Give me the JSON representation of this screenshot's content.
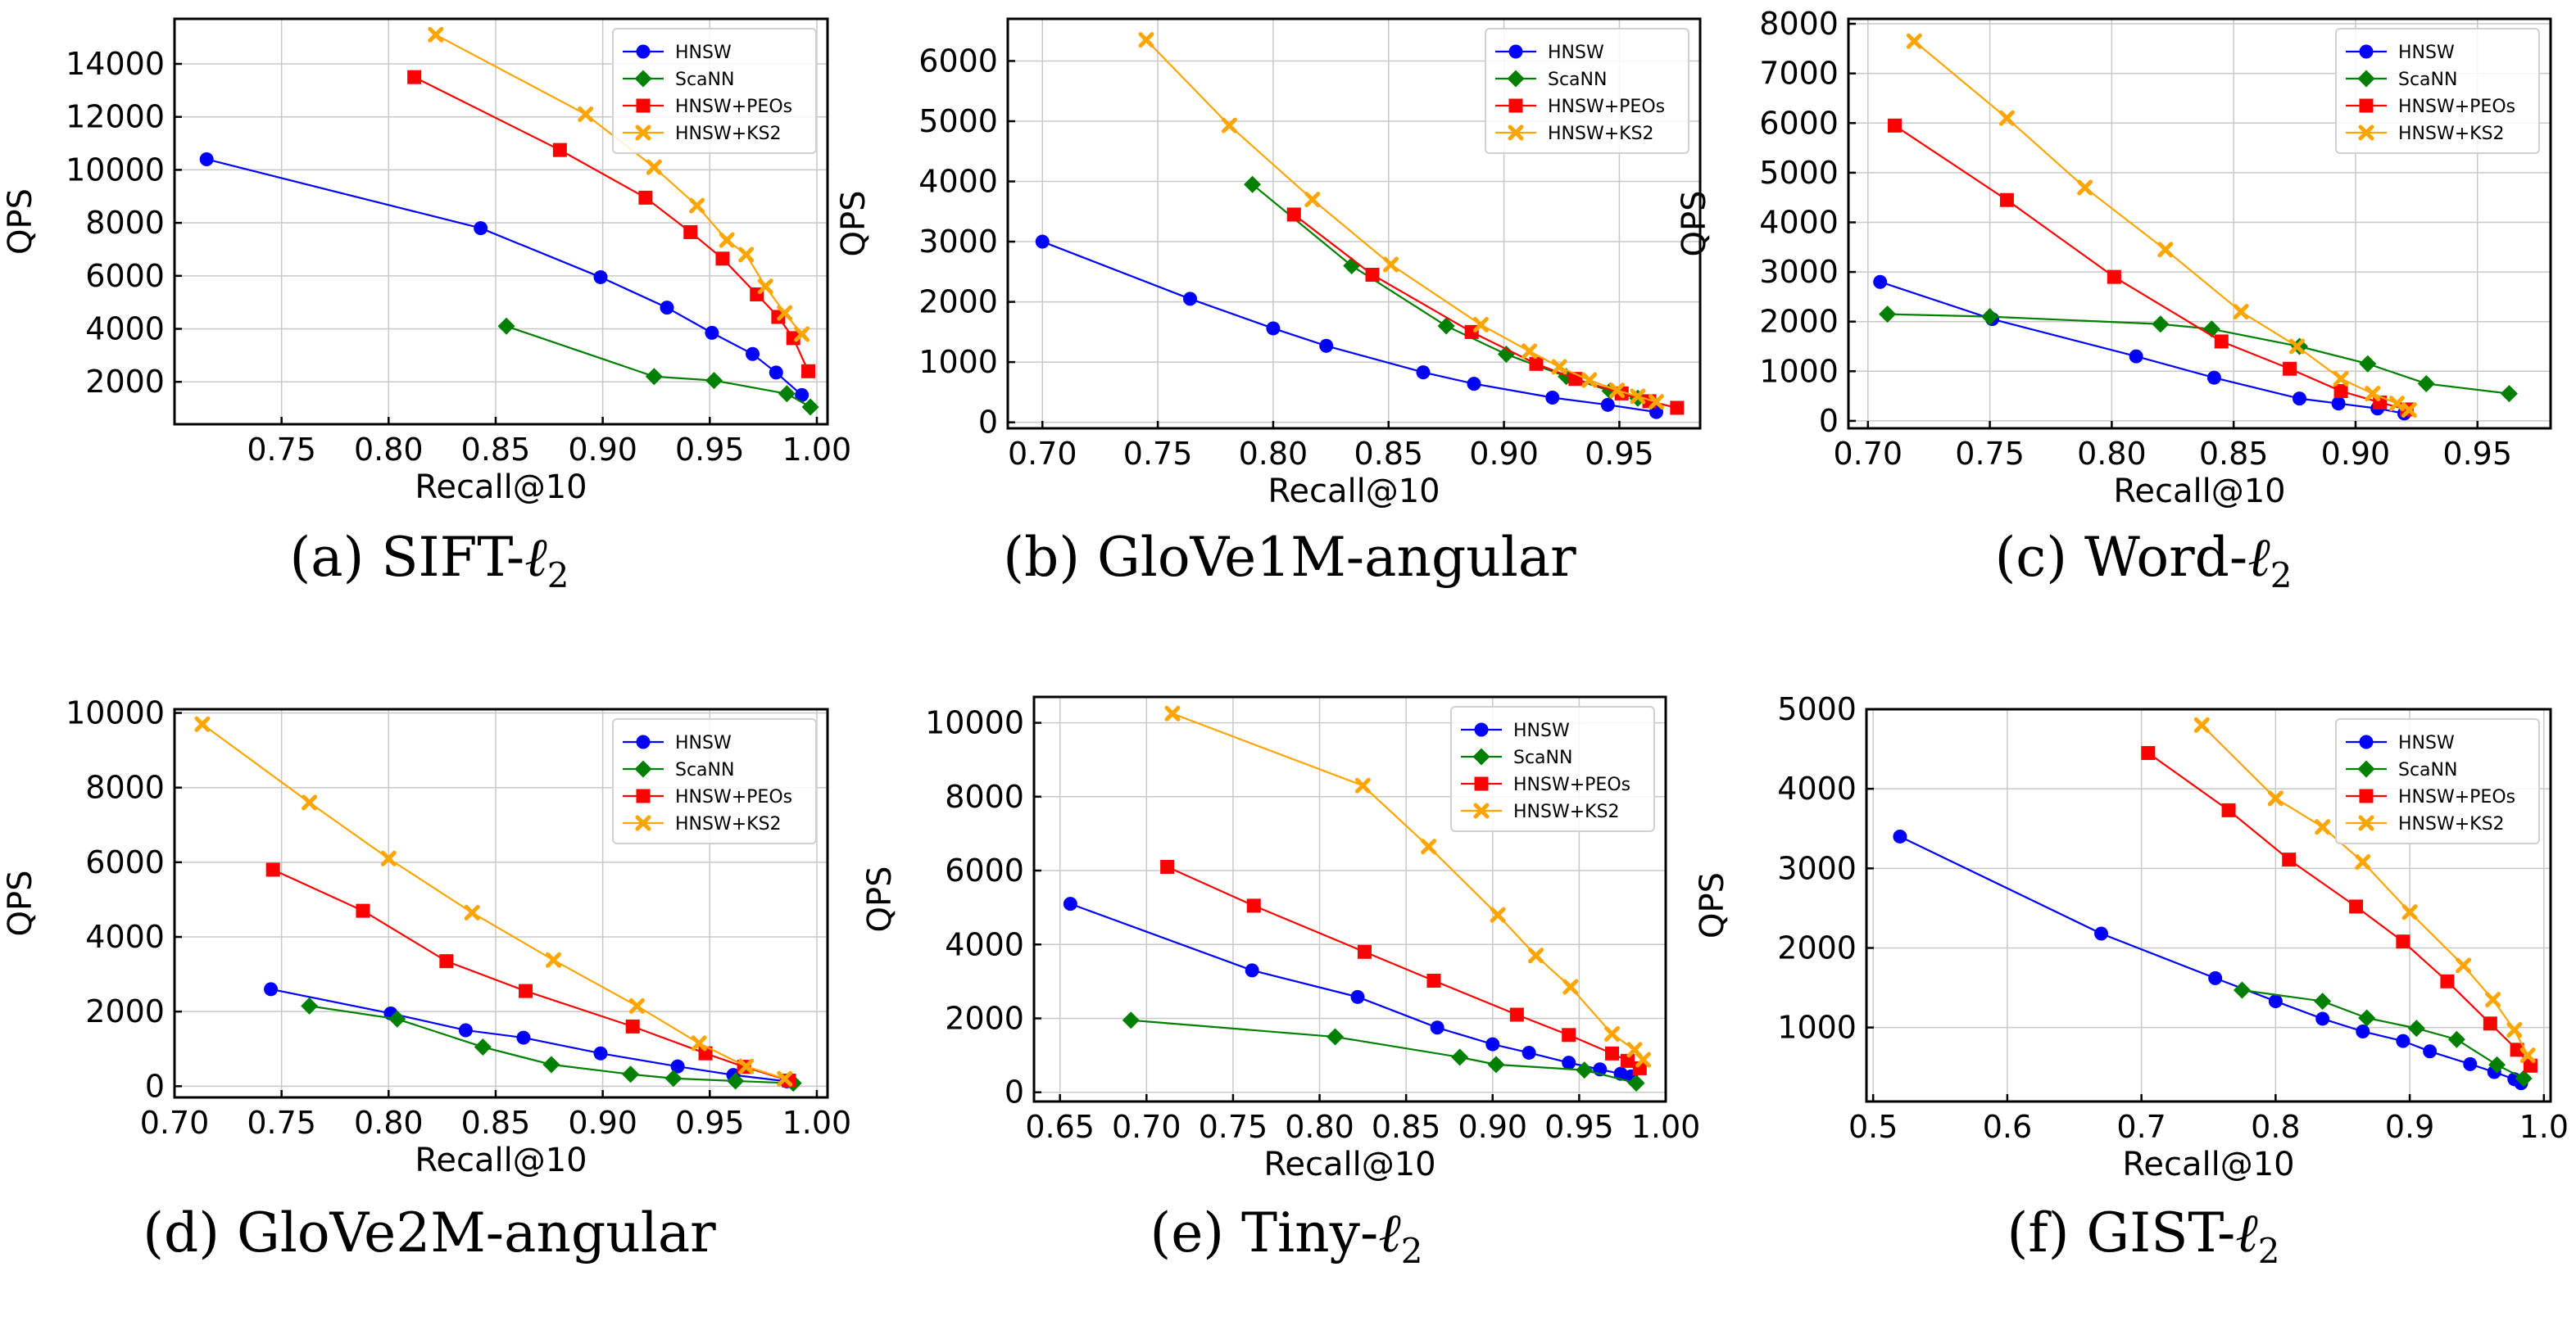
{
  "colors": {
    "HNSW": "#0000ff",
    "ScaNN": "#008000",
    "HNSW+PEOs": "#ff0000",
    "HNSW+KS2": "#ffa500"
  },
  "markers": {
    "HNSW": "circle",
    "ScaNN": "diamond",
    "HNSW+PEOs": "square",
    "HNSW+KS2": "x"
  },
  "chart_data": [
    {
      "type": "line",
      "caption_prefix": "(a) SIFT-",
      "caption_ell": "ℓ",
      "caption_sub": "2",
      "xlabel": "Recall@10",
      "ylabel": "QPS",
      "xlim": [
        0.7,
        1.005
      ],
      "ylim": [
        400,
        15700
      ],
      "xticks": [
        0.75,
        0.8,
        0.85,
        0.9,
        0.95,
        1.0
      ],
      "xtick_labels": [
        "0.75",
        "0.80",
        "0.85",
        "0.90",
        "0.95",
        "1.00"
      ],
      "yticks": [
        2000,
        4000,
        6000,
        8000,
        10000,
        12000,
        14000
      ],
      "ytick_labels": [
        "2000",
        "4000",
        "6000",
        "8000",
        "10000",
        "12000",
        "14000"
      ],
      "grid": true,
      "legend": "top-right",
      "series": [
        {
          "name": "HNSW",
          "x": [
            0.715,
            0.843,
            0.899,
            0.93,
            0.951,
            0.97,
            0.981,
            0.993
          ],
          "y": [
            10400,
            7800,
            5950,
            4800,
            3850,
            3050,
            2350,
            1500
          ]
        },
        {
          "name": "ScaNN",
          "x": [
            0.855,
            0.924,
            0.952,
            0.986,
            0.997
          ],
          "y": [
            4100,
            2200,
            2050,
            1550,
            1050
          ]
        },
        {
          "name": "HNSW+PEOs",
          "x": [
            0.812,
            0.88,
            0.92,
            0.941,
            0.956,
            0.972,
            0.982,
            0.989,
            0.996
          ],
          "y": [
            13500,
            10750,
            8950,
            7650,
            6650,
            5300,
            4450,
            3650,
            2400
          ]
        },
        {
          "name": "HNSW+KS2",
          "x": [
            0.822,
            0.892,
            0.924,
            0.944,
            0.958,
            0.967,
            0.976,
            0.985,
            0.993
          ],
          "y": [
            15100,
            12100,
            10100,
            8650,
            7350,
            6800,
            5600,
            4600,
            3800
          ]
        }
      ]
    },
    {
      "type": "line",
      "caption_prefix": "(b) GloVe1M-angular",
      "caption_ell": "",
      "caption_sub": "",
      "xlabel": "Recall@10",
      "ylabel": "QPS",
      "xlim": [
        0.685,
        0.985
      ],
      "ylim": [
        -100,
        6700
      ],
      "xticks": [
        0.7,
        0.75,
        0.8,
        0.85,
        0.9,
        0.95
      ],
      "xtick_labels": [
        "0.70",
        "0.75",
        "0.80",
        "0.85",
        "0.90",
        "0.95"
      ],
      "yticks": [
        0,
        1000,
        2000,
        3000,
        4000,
        5000,
        6000
      ],
      "ytick_labels": [
        "0",
        "1000",
        "2000",
        "3000",
        "4000",
        "5000",
        "6000"
      ],
      "grid": true,
      "legend": "top-right",
      "series": [
        {
          "name": "HNSW",
          "x": [
            0.7,
            0.764,
            0.8,
            0.823,
            0.865,
            0.887,
            0.921,
            0.945,
            0.966
          ],
          "y": [
            3000,
            2050,
            1560,
            1270,
            830,
            640,
            410,
            290,
            170
          ]
        },
        {
          "name": "ScaNN",
          "x": [
            0.791,
            0.834,
            0.875,
            0.901,
            0.927,
            0.946,
            0.958
          ],
          "y": [
            3950,
            2600,
            1600,
            1130,
            760,
            520,
            400
          ]
        },
        {
          "name": "HNSW+PEOs",
          "x": [
            0.809,
            0.843,
            0.886,
            0.914,
            0.931,
            0.951,
            0.963,
            0.975
          ],
          "y": [
            3450,
            2450,
            1500,
            970,
            720,
            480,
            350,
            240
          ]
        },
        {
          "name": "HNSW+KS2",
          "x": [
            0.745,
            0.781,
            0.817,
            0.851,
            0.89,
            0.911,
            0.924,
            0.937,
            0.949,
            0.958,
            0.966
          ],
          "y": [
            6350,
            4930,
            3700,
            2620,
            1620,
            1180,
            920,
            700,
            530,
            430,
            340
          ]
        }
      ]
    },
    {
      "type": "line",
      "caption_prefix": "(c) Word-",
      "caption_ell": "ℓ",
      "caption_sub": "2",
      "xlabel": "Recall@10",
      "ylabel": "QPS",
      "xlim": [
        0.692,
        0.98
      ],
      "ylim": [
        -150,
        8100
      ],
      "xticks": [
        0.7,
        0.75,
        0.8,
        0.85,
        0.9,
        0.95
      ],
      "xtick_labels": [
        "0.70",
        "0.75",
        "0.80",
        "0.85",
        "0.90",
        "0.95"
      ],
      "yticks": [
        0,
        1000,
        2000,
        3000,
        4000,
        5000,
        6000,
        7000,
        8000
      ],
      "ytick_labels": [
        "0",
        "1000",
        "2000",
        "3000",
        "4000",
        "5000",
        "6000",
        "7000",
        "8000"
      ],
      "grid": true,
      "legend": "top-right",
      "series": [
        {
          "name": "HNSW",
          "x": [
            0.705,
            0.751,
            0.81,
            0.842,
            0.877,
            0.893,
            0.909,
            0.92
          ],
          "y": [
            2800,
            2050,
            1300,
            870,
            450,
            350,
            250,
            150
          ]
        },
        {
          "name": "ScaNN",
          "x": [
            0.708,
            0.75,
            0.82,
            0.841,
            0.877,
            0.905,
            0.929,
            0.963
          ],
          "y": [
            2150,
            2100,
            1950,
            1850,
            1500,
            1150,
            750,
            550
          ]
        },
        {
          "name": "HNSW+PEOs",
          "x": [
            0.711,
            0.757,
            0.801,
            0.845,
            0.873,
            0.894,
            0.91,
            0.921
          ],
          "y": [
            5950,
            4450,
            2900,
            1600,
            1050,
            600,
            370,
            230
          ]
        },
        {
          "name": "HNSW+KS2",
          "x": [
            0.719,
            0.757,
            0.789,
            0.822,
            0.853,
            0.876,
            0.894,
            0.907,
            0.917,
            0.922
          ],
          "y": [
            7650,
            6100,
            4700,
            3450,
            2200,
            1500,
            850,
            550,
            350,
            220
          ]
        }
      ]
    },
    {
      "type": "line",
      "caption_prefix": "(d) GloVe2M-angular",
      "caption_ell": "",
      "caption_sub": "",
      "xlabel": "Recall@10",
      "ylabel": "QPS",
      "xlim": [
        0.7,
        1.005
      ],
      "ylim": [
        -300,
        10100
      ],
      "xticks": [
        0.7,
        0.75,
        0.8,
        0.85,
        0.9,
        0.95,
        1.0
      ],
      "xtick_labels": [
        "0.70",
        "0.75",
        "0.80",
        "0.85",
        "0.90",
        "0.95",
        "1.00"
      ],
      "yticks": [
        0,
        2000,
        4000,
        6000,
        8000,
        10000
      ],
      "ytick_labels": [
        "0",
        "2000",
        "4000",
        "6000",
        "8000",
        "10000"
      ],
      "grid": true,
      "legend": "top-right",
      "series": [
        {
          "name": "HNSW",
          "x": [
            0.745,
            0.801,
            0.836,
            0.863,
            0.899,
            0.935,
            0.961,
            0.986
          ],
          "y": [
            2600,
            1950,
            1500,
            1300,
            880,
            530,
            300,
            130
          ]
        },
        {
          "name": "ScaNN",
          "x": [
            0.763,
            0.804,
            0.844,
            0.876,
            0.913,
            0.933,
            0.962,
            0.989
          ],
          "y": [
            2150,
            1800,
            1050,
            580,
            320,
            210,
            140,
            80
          ]
        },
        {
          "name": "HNSW+PEOs",
          "x": [
            0.746,
            0.788,
            0.827,
            0.864,
            0.914,
            0.948,
            0.966,
            0.987
          ],
          "y": [
            5800,
            4700,
            3350,
            2550,
            1600,
            880,
            520,
            150
          ]
        },
        {
          "name": "HNSW+KS2",
          "x": [
            0.713,
            0.763,
            0.8,
            0.839,
            0.877,
            0.916,
            0.945,
            0.967,
            0.985
          ],
          "y": [
            9700,
            7600,
            6100,
            4650,
            3380,
            2150,
            1150,
            530,
            200
          ]
        }
      ]
    },
    {
      "type": "line",
      "caption_prefix": "(e) Tiny-",
      "caption_ell": "ℓ",
      "caption_sub": "2",
      "xlabel": "Recall@10",
      "ylabel": "QPS",
      "xlim": [
        0.635,
        1.0
      ],
      "ylim": [
        -250,
        10700
      ],
      "xticks": [
        0.65,
        0.7,
        0.75,
        0.8,
        0.85,
        0.9,
        0.95,
        1.0
      ],
      "xtick_labels": [
        "0.65",
        "0.70",
        "0.75",
        "0.80",
        "0.85",
        "0.90",
        "0.95",
        "1.00"
      ],
      "yticks": [
        0,
        2000,
        4000,
        6000,
        8000,
        10000
      ],
      "ytick_labels": [
        "0",
        "2000",
        "4000",
        "6000",
        "8000",
        "10000"
      ],
      "grid": true,
      "legend": "top-right",
      "series": [
        {
          "name": "HNSW",
          "x": [
            0.656,
            0.761,
            0.822,
            0.868,
            0.9,
            0.921,
            0.944,
            0.962,
            0.974,
            0.98
          ],
          "y": [
            5100,
            3300,
            2580,
            1750,
            1300,
            1070,
            800,
            620,
            500,
            430
          ]
        },
        {
          "name": "ScaNN",
          "x": [
            0.691,
            0.809,
            0.881,
            0.902,
            0.953,
            0.983
          ],
          "y": [
            1950,
            1500,
            950,
            750,
            600,
            250
          ]
        },
        {
          "name": "HNSW+PEOs",
          "x": [
            0.712,
            0.762,
            0.826,
            0.866,
            0.914,
            0.944,
            0.969,
            0.978,
            0.985
          ],
          "y": [
            6100,
            5050,
            3800,
            3020,
            2100,
            1550,
            1050,
            850,
            650
          ]
        },
        {
          "name": "HNSW+KS2",
          "x": [
            0.715,
            0.825,
            0.863,
            0.903,
            0.925,
            0.945,
            0.969,
            0.982,
            0.987
          ],
          "y": [
            10250,
            8300,
            6650,
            4800,
            3700,
            2850,
            1580,
            1150,
            880
          ]
        }
      ]
    },
    {
      "type": "line",
      "caption_prefix": "(f) GIST-",
      "caption_ell": "ℓ",
      "caption_sub": "2",
      "xlabel": "Recall@10",
      "ylabel": "QPS",
      "xlim": [
        0.495,
        1.005
      ],
      "ylim": [
        70,
        5000
      ],
      "xticks": [
        0.5,
        0.6,
        0.7,
        0.8,
        0.9,
        1.0
      ],
      "xtick_labels": [
        "0.5",
        "0.6",
        "0.7",
        "0.8",
        "0.9",
        "1.0"
      ],
      "yticks": [
        1000,
        2000,
        3000,
        4000,
        5000
      ],
      "ytick_labels": [
        "1000",
        "2000",
        "3000",
        "4000",
        "5000"
      ],
      "grid": true,
      "legend": "top-right",
      "series": [
        {
          "name": "HNSW",
          "x": [
            0.52,
            0.67,
            0.755,
            0.8,
            0.835,
            0.865,
            0.895,
            0.915,
            0.945,
            0.963,
            0.978,
            0.983
          ],
          "y": [
            3400,
            2180,
            1620,
            1330,
            1110,
            950,
            830,
            700,
            540,
            440,
            350,
            300
          ]
        },
        {
          "name": "ScaNN",
          "x": [
            0.775,
            0.835,
            0.868,
            0.905,
            0.935,
            0.965,
            0.985
          ],
          "y": [
            1470,
            1330,
            1120,
            990,
            850,
            530,
            360
          ]
        },
        {
          "name": "HNSW+PEOs",
          "x": [
            0.705,
            0.765,
            0.81,
            0.86,
            0.895,
            0.928,
            0.96,
            0.98,
            0.99
          ],
          "y": [
            4450,
            3730,
            3110,
            2520,
            2080,
            1580,
            1050,
            720,
            520
          ]
        },
        {
          "name": "HNSW+KS2",
          "x": [
            0.745,
            0.8,
            0.835,
            0.865,
            0.9,
            0.94,
            0.962,
            0.978,
            0.988
          ],
          "y": [
            4800,
            3880,
            3520,
            3080,
            2450,
            1780,
            1350,
            970,
            650
          ]
        }
      ]
    }
  ]
}
